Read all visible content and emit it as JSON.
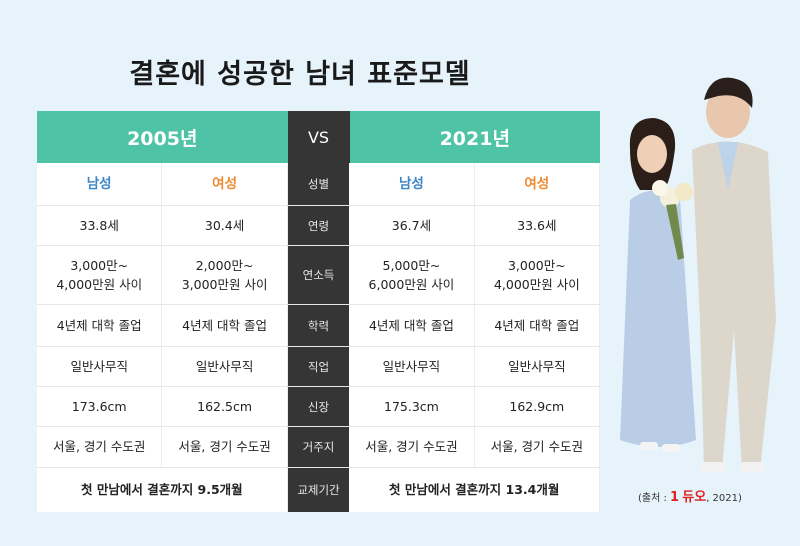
{
  "title": "결혼에 성공한 남녀 표준모델",
  "header": {
    "left_year": "2005년",
    "vs": "VS",
    "right_year": "2021년"
  },
  "rows": [
    {
      "label": "성별",
      "m2005": "남성",
      "f2005": "여성",
      "m2021": "남성",
      "f2021": "여성"
    },
    {
      "label": "연령",
      "m2005": "33.8세",
      "f2005": "30.4세",
      "m2021": "36.7세",
      "f2021": "33.6세"
    },
    {
      "label": "연소득",
      "m2005": [
        "3,000만~",
        "4,000만원 사이"
      ],
      "f2005": [
        "2,000만~",
        "3,000만원 사이"
      ],
      "m2021": [
        "5,000만~",
        "6,000만원 사이"
      ],
      "f2021": [
        "3,000만~",
        "4,000만원 사이"
      ]
    },
    {
      "label": "학력",
      "m2005": "4년제 대학 졸업",
      "f2005": "4년제 대학 졸업",
      "m2021": "4년제 대학 졸업",
      "f2021": "4년제 대학 졸업"
    },
    {
      "label": "직업",
      "m2005": "일반사무직",
      "f2005": "일반사무직",
      "m2021": "일반사무직",
      "f2021": "일반사무직"
    },
    {
      "label": "신장",
      "m2005": "173.6cm",
      "f2005": "162.5cm",
      "m2021": "175.3cm",
      "f2021": "162.9cm"
    },
    {
      "label": "거주지",
      "m2005": "서울, 경기 수도권",
      "f2005": "서울, 경기 수도권",
      "m2021": "서울, 경기 수도권",
      "f2021": "서울, 경기 수도권"
    },
    {
      "label": "교제기간",
      "left": "첫 만남에서 결혼까지 9.5개월",
      "right": "첫 만남에서 결혼까지 13.4개월"
    }
  ],
  "source": {
    "prefix": "(출처 : ",
    "brand_mark": "1",
    "brand": "듀오",
    "suffix": ", 2021)"
  },
  "colors": {
    "header_green": "#4ec3a6",
    "center_dark": "#353535",
    "male_blue": "#3a86c8",
    "female_orange": "#ef8a2f"
  }
}
